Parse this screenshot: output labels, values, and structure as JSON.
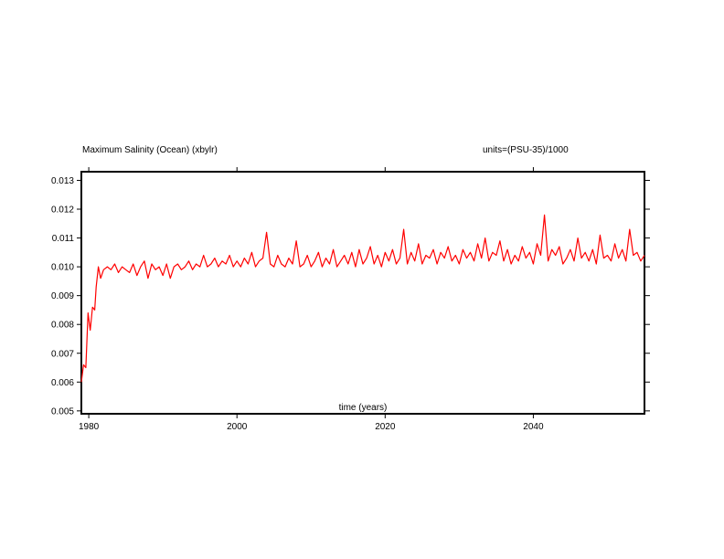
{
  "chart_data": {
    "type": "line",
    "title": "Maximum Salinity (Ocean) (xbylr)",
    "units_label": "units=(PSU-35)/1000",
    "xlabel": "time (years)",
    "ylabel": "",
    "xlim": [
      1979.0,
      2055.0
    ],
    "ylim": [
      0.0049,
      0.0133
    ],
    "x_ticks": [
      1980,
      2000,
      2020,
      2040
    ],
    "x_tick_labels": [
      "1980",
      "2000",
      "2020",
      "2040"
    ],
    "y_ticks": [
      0.005,
      0.006,
      0.007,
      0.008,
      0.009,
      0.01,
      0.011,
      0.012,
      0.013
    ],
    "y_tick_labels": [
      "0.005",
      "0.006",
      "0.007",
      "0.008",
      "0.009",
      "0.010",
      "0.011",
      "0.012",
      "0.013"
    ],
    "grid": false,
    "legend": "none",
    "series_color": "#ff0000",
    "series": [
      {
        "x": [
          1979.0,
          1979.3,
          1979.6,
          1979.9,
          1980.2,
          1980.5,
          1980.8,
          1981.0,
          1981.3,
          1981.6,
          1982.0,
          1982.5,
          1983.0,
          1983.5,
          1984.0,
          1984.5,
          1985.0,
          1985.5,
          1986.0,
          1986.5,
          1987.0,
          1987.5,
          1988.0,
          1988.5,
          1989.0,
          1989.5,
          1990.0,
          1990.5,
          1991.0,
          1991.5,
          1992.0,
          1992.5,
          1993.0,
          1993.5,
          1994.0,
          1994.5,
          1995.0,
          1995.5,
          1996.0,
          1996.5,
          1997.0,
          1997.5,
          1998.0,
          1998.5,
          1999.0,
          1999.5,
          2000.0,
          2000.5,
          2001.0,
          2001.5,
          2002.0,
          2002.5,
          2003.0,
          2003.5,
          2004.0,
          2004.5,
          2005.0,
          2005.5,
          2006.0,
          2006.5,
          2007.0,
          2007.5,
          2008.0,
          2008.5,
          2009.0,
          2009.5,
          2010.0,
          2010.5,
          2011.0,
          2011.5,
          2012.0,
          2012.5,
          2013.0,
          2013.5,
          2014.0,
          2014.5,
          2015.0,
          2015.5,
          2016.0,
          2016.5,
          2017.0,
          2017.5,
          2018.0,
          2018.5,
          2019.0,
          2019.5,
          2020.0,
          2020.5,
          2021.0,
          2021.5,
          2022.0,
          2022.5,
          2023.0,
          2023.5,
          2024.0,
          2024.5,
          2025.0,
          2025.5,
          2026.0,
          2026.5,
          2027.0,
          2027.5,
          2028.0,
          2028.5,
          2029.0,
          2029.5,
          2030.0,
          2030.5,
          2031.0,
          2031.5,
          2032.0,
          2032.5,
          2033.0,
          2033.5,
          2034.0,
          2034.5,
          2035.0,
          2035.5,
          2036.0,
          2036.5,
          2037.0,
          2037.5,
          2038.0,
          2038.5,
          2039.0,
          2039.5,
          2040.0,
          2040.5,
          2041.0,
          2041.5,
          2042.0,
          2042.5,
          2043.0,
          2043.5,
          2044.0,
          2044.5,
          2045.0,
          2045.5,
          2046.0,
          2046.5,
          2047.0,
          2047.5,
          2048.0,
          2048.5,
          2049.0,
          2049.5,
          2050.0,
          2050.5,
          2051.0,
          2051.5,
          2052.0,
          2052.5,
          2053.0,
          2053.5,
          2054.0,
          2054.5,
          2055.0
        ],
        "y": [
          0.006,
          0.0066,
          0.0065,
          0.0084,
          0.0078,
          0.0086,
          0.0085,
          0.0093,
          0.01,
          0.0096,
          0.0099,
          0.01,
          0.0099,
          0.0101,
          0.0098,
          0.01,
          0.0099,
          0.0098,
          0.0101,
          0.0097,
          0.01,
          0.0102,
          0.0096,
          0.0101,
          0.0099,
          0.01,
          0.0097,
          0.0101,
          0.0096,
          0.01,
          0.0101,
          0.0099,
          0.01,
          0.0102,
          0.0099,
          0.0101,
          0.01,
          0.0104,
          0.01,
          0.0101,
          0.0103,
          0.01,
          0.0102,
          0.0101,
          0.0104,
          0.01,
          0.0102,
          0.01,
          0.0103,
          0.0101,
          0.0105,
          0.01,
          0.0102,
          0.0103,
          0.0112,
          0.0101,
          0.01,
          0.0104,
          0.0101,
          0.01,
          0.0103,
          0.0101,
          0.0109,
          0.01,
          0.0101,
          0.0104,
          0.01,
          0.0102,
          0.0105,
          0.01,
          0.0103,
          0.0101,
          0.0106,
          0.01,
          0.0102,
          0.0104,
          0.0101,
          0.0105,
          0.01,
          0.0106,
          0.0101,
          0.0103,
          0.0107,
          0.0101,
          0.0104,
          0.01,
          0.0105,
          0.0102,
          0.0106,
          0.0101,
          0.0103,
          0.0113,
          0.0101,
          0.0105,
          0.0102,
          0.0108,
          0.0101,
          0.0104,
          0.0103,
          0.0106,
          0.0101,
          0.0105,
          0.0103,
          0.0107,
          0.0102,
          0.0104,
          0.0101,
          0.0106,
          0.0103,
          0.0105,
          0.0102,
          0.0108,
          0.0103,
          0.011,
          0.0102,
          0.0105,
          0.0104,
          0.0109,
          0.0102,
          0.0106,
          0.0101,
          0.0104,
          0.0102,
          0.0107,
          0.0103,
          0.0105,
          0.0101,
          0.0108,
          0.0104,
          0.0118,
          0.0102,
          0.0106,
          0.0104,
          0.0107,
          0.0101,
          0.0103,
          0.0106,
          0.0102,
          0.011,
          0.0103,
          0.0105,
          0.0102,
          0.0106,
          0.0101,
          0.0111,
          0.0103,
          0.0104,
          0.0102,
          0.0108,
          0.0103,
          0.0106,
          0.0102,
          0.0113,
          0.0104,
          0.0105,
          0.0102,
          0.0104
        ]
      }
    ]
  }
}
